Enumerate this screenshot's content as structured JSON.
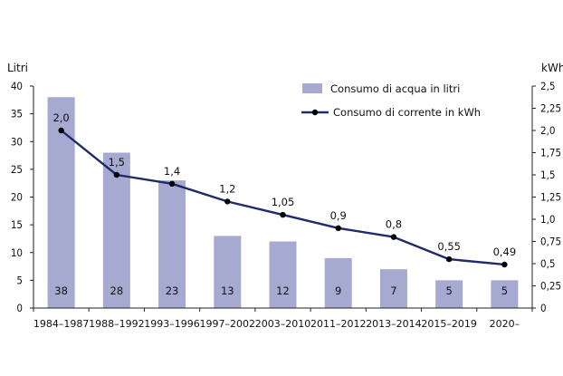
{
  "chart_data": {
    "type": "bar",
    "title": "",
    "xlabel": "",
    "ylabel_left": "Litri",
    "ylabel_right": "kWh",
    "categories": [
      "1984–1987",
      "1988–1992",
      "1993–1996",
      "1997–2002",
      "2003–2010",
      "2011–2012",
      "2013–2014",
      "2015–2019",
      "2020–"
    ],
    "series": [
      {
        "name": "Consumo di acqua in litri",
        "type": "bar",
        "axis": "left",
        "color": "#a6a9d0",
        "values": [
          38,
          28,
          23,
          13,
          12,
          9,
          7,
          5,
          5
        ],
        "labels": [
          "38",
          "28",
          "23",
          "13",
          "12",
          "9",
          "7",
          "5",
          "5"
        ]
      },
      {
        "name": "Consumo di corrente in kWh",
        "type": "line",
        "axis": "right",
        "color": "#1f2a6b",
        "values": [
          2.0,
          1.5,
          1.4,
          1.2,
          1.05,
          0.9,
          0.8,
          0.55,
          0.49
        ],
        "labels": [
          "2,0",
          "1,5",
          "1,4",
          "1,2",
          "1,05",
          "0,9",
          "0,8",
          "0,55",
          "0,49"
        ]
      }
    ],
    "y_left": {
      "lim": [
        0,
        40
      ],
      "ticks": [
        "0",
        "5",
        "10",
        "15",
        "20",
        "25",
        "30",
        "35",
        "40"
      ]
    },
    "y_right": {
      "lim": [
        0,
        2.5
      ],
      "ticks": [
        "0",
        "0,25",
        "0,5",
        "0,75",
        "1,0",
        "1,25",
        "1,5",
        "1,75",
        "2,0",
        "2,25",
        "2,5"
      ]
    },
    "grid": false,
    "legend": "top-right"
  }
}
